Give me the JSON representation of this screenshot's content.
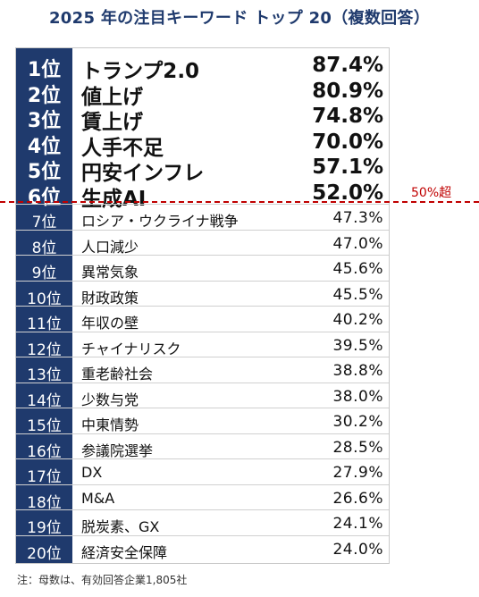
{
  "title": "2025 年の注目キーワード トップ 20（複数回答）",
  "threshold_label": "50%超",
  "footnote": "注：母数は、有効回答企業1,805社",
  "colors": {
    "rank_bg": "#1f3a6d",
    "title": "#1f3a6d",
    "threshold_line": "#c00000"
  },
  "rankings": [
    {
      "rank": "1位",
      "keyword": "トランプ2.0",
      "percent": "87.4%"
    },
    {
      "rank": "2位",
      "keyword": "値上げ",
      "percent": "80.9%"
    },
    {
      "rank": "3位",
      "keyword": "賃上げ",
      "percent": "74.8%"
    },
    {
      "rank": "4位",
      "keyword": "人手不足",
      "percent": "70.0%"
    },
    {
      "rank": "5位",
      "keyword": "円安インフレ",
      "percent": "57.1%"
    },
    {
      "rank": "6位",
      "keyword": "生成AI",
      "percent": "52.0%"
    },
    {
      "rank": "7位",
      "keyword": "ロシア・ウクライナ戦争",
      "percent": "47.3%"
    },
    {
      "rank": "8位",
      "keyword": "人口減少",
      "percent": "47.0%"
    },
    {
      "rank": "9位",
      "keyword": "異常気象",
      "percent": "45.6%"
    },
    {
      "rank": "10位",
      "keyword": "財政政策",
      "percent": "45.5%"
    },
    {
      "rank": "11位",
      "keyword": "年収の壁",
      "percent": "40.2%"
    },
    {
      "rank": "12位",
      "keyword": "チャイナリスク",
      "percent": "39.5%"
    },
    {
      "rank": "13位",
      "keyword": "重老齢社会",
      "percent": "38.8%"
    },
    {
      "rank": "14位",
      "keyword": "少数与党",
      "percent": "38.0%"
    },
    {
      "rank": "15位",
      "keyword": "中東情勢",
      "percent": "30.2%"
    },
    {
      "rank": "16位",
      "keyword": "参議院選挙",
      "percent": "28.5%"
    },
    {
      "rank": "17位",
      "keyword": "DX",
      "percent": "27.9%"
    },
    {
      "rank": "18位",
      "keyword": "M&A",
      "percent": "26.6%"
    },
    {
      "rank": "19位",
      "keyword": "脱炭素、GX",
      "percent": "24.1%"
    },
    {
      "rank": "20位",
      "keyword": "経済安全保障",
      "percent": "24.0%"
    }
  ]
}
